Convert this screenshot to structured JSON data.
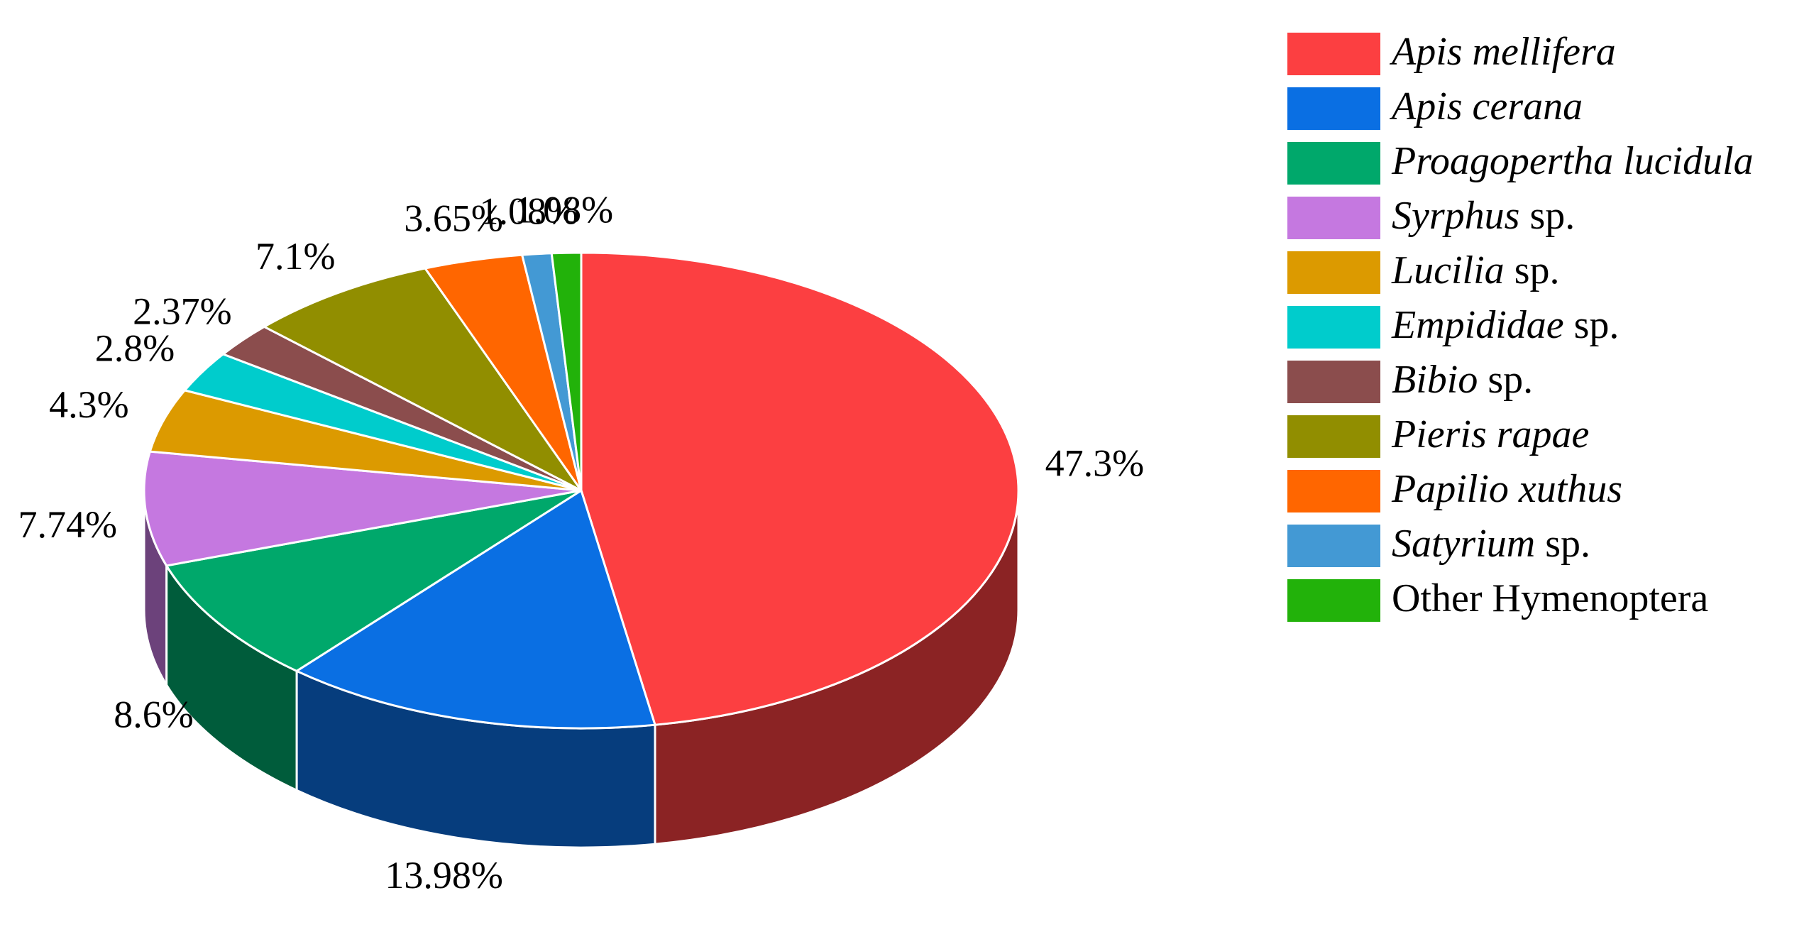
{
  "chart_data": {
    "type": "pie3d",
    "categories": [
      {
        "italic": "Apis mellifera"
      },
      {
        "italic": "Apis cerana"
      },
      {
        "italic": "Proagopertha lucidula"
      },
      {
        "italic": "Syrphus",
        "roman": "sp."
      },
      {
        "italic": "Lucilia",
        "roman": "sp."
      },
      {
        "italic": "Empididae",
        "roman": "sp."
      },
      {
        "italic": "Bibio",
        "roman": "sp."
      },
      {
        "italic": "Pieris rapae"
      },
      {
        "italic": "Papilio xuthus"
      },
      {
        "italic": "Satyrium",
        "roman": "sp."
      },
      {
        "roman": "Other Hymenoptera"
      }
    ],
    "values": [
      47.3,
      13.98,
      8.6,
      7.74,
      4.3,
      2.8,
      2.37,
      7.1,
      3.65,
      1.08,
      1.08
    ],
    "value_labels": [
      "47.3%",
      "13.98%",
      "8.6%",
      "7.74%",
      "4.3%",
      "2.8%",
      "2.37%",
      "7.1%",
      "3.65%",
      "1.08%",
      "1.08%"
    ],
    "colors": [
      "#fc3f41",
      "#0a6fe3",
      "#00a86b",
      "#c578e0",
      "#dc9a00",
      "#00cccc",
      "#8b4d4d",
      "#918e00",
      "#ff6600",
      "#4399d4",
      "#22b20a"
    ],
    "legend": "right"
  }
}
